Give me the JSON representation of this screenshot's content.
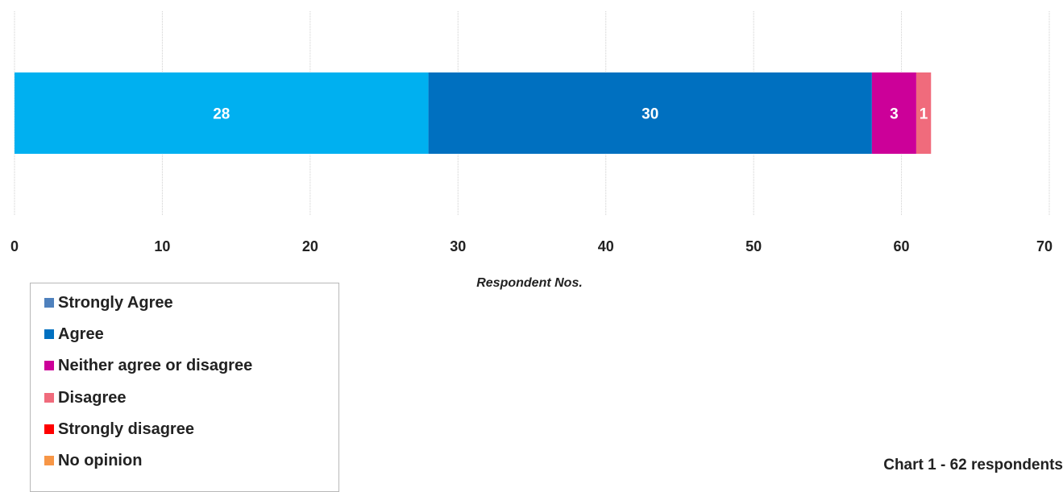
{
  "chart_data": {
    "type": "bar",
    "orientation": "horizontal",
    "stacked": true,
    "categories": [
      ""
    ],
    "series": [
      {
        "name": "Strongly Agree",
        "values": [
          28
        ],
        "color": "#00b0f0",
        "label": "28"
      },
      {
        "name": "Agree",
        "values": [
          30
        ],
        "color": "#0070c0",
        "label": "30"
      },
      {
        "name": "Neither agree or disagree",
        "values": [
          3
        ],
        "color": "#cc0099",
        "label": "3"
      },
      {
        "name": "Disagree",
        "values": [
          1
        ],
        "color": "#f06b7c",
        "label": "1"
      },
      {
        "name": "Strongly disagree",
        "values": [
          0
        ],
        "color": "#ff0000",
        "label": ""
      },
      {
        "name": "No opinion",
        "values": [
          0
        ],
        "color": "#f79646",
        "label": ""
      }
    ],
    "xlim": [
      0,
      70
    ],
    "xticks": [
      "0",
      "10",
      "20",
      "30",
      "40",
      "50",
      "60",
      "70"
    ],
    "xlabel": "Respondent  Nos.",
    "grid": true,
    "legend_position": "bottom-left",
    "legend": [
      {
        "label": "Strongly Agree",
        "color": "#4f81bd"
      },
      {
        "label": "Agree",
        "color": "#0070c0"
      },
      {
        "label": "Neither agree or disagree",
        "color": "#cc0099"
      },
      {
        "label": "Disagree",
        "color": "#f06b7c"
      },
      {
        "label": "Strongly disagree",
        "color": "#ff0000"
      },
      {
        "label": "No opinion",
        "color": "#f79646"
      }
    ],
    "caption": "Chart 1 - 62 respondents"
  }
}
